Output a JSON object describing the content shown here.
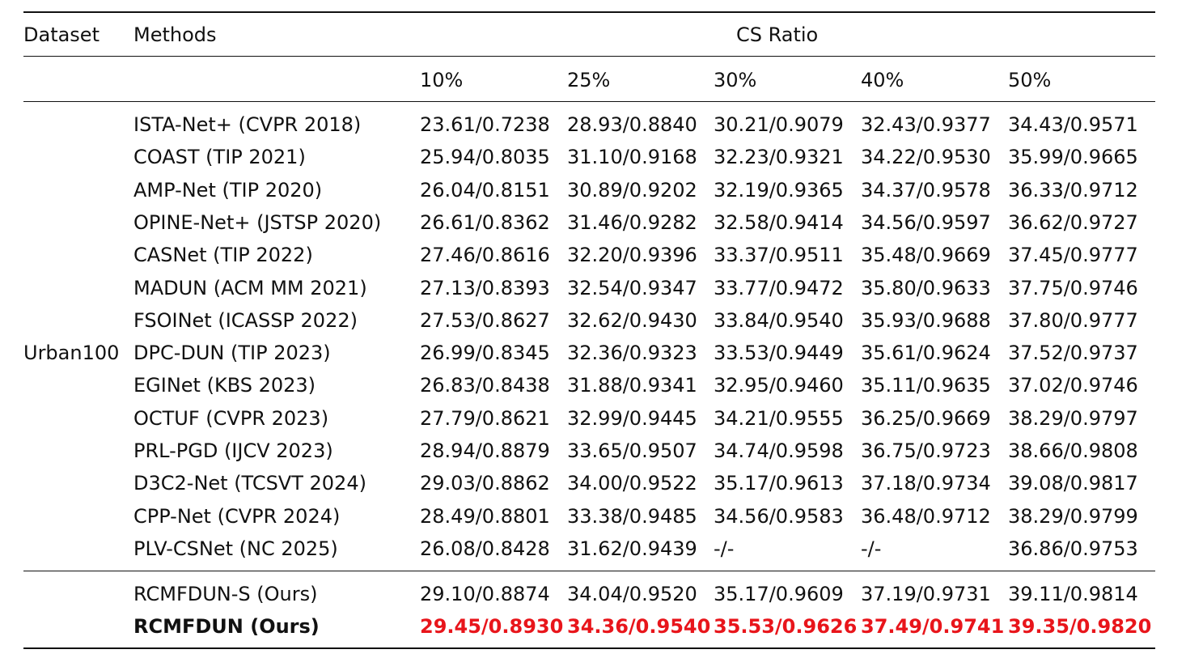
{
  "table": {
    "header": {
      "dataset": "Dataset",
      "methods": "Methods",
      "group": "CS Ratio"
    },
    "ratios": [
      "10%",
      "25%",
      "30%",
      "40%",
      "50%"
    ],
    "dataset_label": "Urban100",
    "rows": [
      {
        "method": "ISTA-Net+ (CVPR 2018)",
        "values": [
          "23.61/0.7238",
          "28.93/0.8840",
          "30.21/0.9079",
          "32.43/0.9377",
          "34.43/0.9571"
        ]
      },
      {
        "method": "COAST (TIP 2021)",
        "values": [
          "25.94/0.8035",
          "31.10/0.9168",
          "32.23/0.9321",
          "34.22/0.9530",
          "35.99/0.9665"
        ]
      },
      {
        "method": "AMP-Net (TIP 2020)",
        "values": [
          "26.04/0.8151",
          "30.89/0.9202",
          "32.19/0.9365",
          "34.37/0.9578",
          "36.33/0.9712"
        ]
      },
      {
        "method": "OPINE-Net+ (JSTSP 2020)",
        "values": [
          "26.61/0.8362",
          "31.46/0.9282",
          "32.58/0.9414",
          "34.56/0.9597",
          "36.62/0.9727"
        ]
      },
      {
        "method": "CASNet (TIP 2022)",
        "values": [
          "27.46/0.8616",
          "32.20/0.9396",
          "33.37/0.9511",
          "35.48/0.9669",
          "37.45/0.9777"
        ]
      },
      {
        "method": "MADUN (ACM MM 2021)",
        "values": [
          "27.13/0.8393",
          "32.54/0.9347",
          "33.77/0.9472",
          "35.80/0.9633",
          "37.75/0.9746"
        ]
      },
      {
        "method": "FSOINet (ICASSP 2022)",
        "values": [
          "27.53/0.8627",
          "32.62/0.9430",
          "33.84/0.9540",
          "35.93/0.9688",
          "37.80/0.9777"
        ]
      },
      {
        "method": "DPC-DUN (TIP 2023)",
        "values": [
          "26.99/0.8345",
          "32.36/0.9323",
          "33.53/0.9449",
          "35.61/0.9624",
          "37.52/0.9737"
        ]
      },
      {
        "method": "EGINet (KBS 2023)",
        "values": [
          "26.83/0.8438",
          "31.88/0.9341",
          "32.95/0.9460",
          "35.11/0.9635",
          "37.02/0.9746"
        ]
      },
      {
        "method": "OCTUF (CVPR 2023)",
        "values": [
          "27.79/0.8621",
          "32.99/0.9445",
          "34.21/0.9555",
          "36.25/0.9669",
          "38.29/0.9797"
        ]
      },
      {
        "method": "PRL-PGD (IJCV 2023)",
        "values": [
          "28.94/0.8879",
          "33.65/0.9507",
          "34.74/0.9598",
          "36.75/0.9723",
          "38.66/0.9808"
        ]
      },
      {
        "method": "D3C2-Net (TCSVT 2024)",
        "values": [
          "29.03/0.8862",
          "34.00/0.9522",
          "35.17/0.9613",
          "37.18/0.9734",
          "39.08/0.9817"
        ]
      },
      {
        "method": "CPP-Net (CVPR 2024)",
        "values": [
          "28.49/0.8801",
          "33.38/0.9485",
          "34.56/0.9583",
          "36.48/0.9712",
          "38.29/0.9799"
        ]
      },
      {
        "method": "PLV-CSNet (NC 2025)",
        "values": [
          "26.08/0.8428",
          "31.62/0.9439",
          "-/-",
          "-/-",
          "36.86/0.9753"
        ]
      }
    ],
    "ours": [
      {
        "method": "RCMFDUN-S (Ours)",
        "values": [
          "29.10/0.8874",
          "34.04/0.9520",
          "35.17/0.9609",
          "37.19/0.9731",
          "39.11/0.9814"
        ]
      },
      {
        "method": "RCMFDUN (Ours)",
        "values": [
          "29.45/0.8930",
          "34.36/0.9540",
          "35.53/0.9626",
          "37.49/0.9741",
          "39.35/0.9820"
        ]
      }
    ],
    "highlight_color": "#e8151b"
  }
}
